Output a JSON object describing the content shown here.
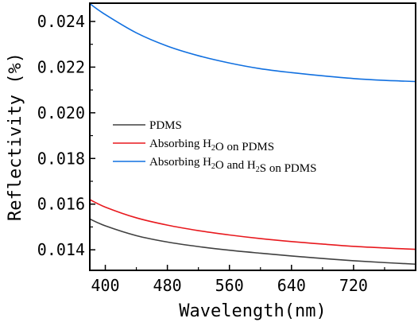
{
  "chart_data": {
    "type": "line",
    "xlabel": "Wavelength(nm)",
    "ylabel": "Reflectivity (%)",
    "xlim": [
      380,
      800
    ],
    "ylim": [
      0.0131,
      0.0248
    ],
    "xticks": [
      400,
      480,
      560,
      640,
      720
    ],
    "xtick_labels": [
      "400",
      "480",
      "560",
      "640",
      "720"
    ],
    "yticks": [
      0.014,
      0.016,
      0.018,
      0.02,
      0.022,
      0.024
    ],
    "ytick_labels": [
      "0.014",
      "0.016",
      "0.018",
      "0.020",
      "0.022",
      "0.024"
    ],
    "grid": false,
    "legend_position": "middle-left",
    "series": [
      {
        "name": "PDMS",
        "legend_parts": [
          {
            "t": "PDMS"
          }
        ],
        "color": "#404040",
        "x": [
          380,
          400,
          440,
          480,
          520,
          560,
          600,
          640,
          680,
          720,
          760,
          800
        ],
        "y": [
          0.01535,
          0.01505,
          0.01462,
          0.01434,
          0.01414,
          0.01398,
          0.01385,
          0.01373,
          0.01362,
          0.01352,
          0.01344,
          0.01337
        ]
      },
      {
        "name": "Absorbing H2O on PDMS",
        "legend_parts": [
          {
            "t": "Absorbing H"
          },
          {
            "t": "2",
            "sub": true
          },
          {
            "t": "O on PDMS"
          }
        ],
        "color": "#e8191e",
        "x": [
          380,
          400,
          440,
          480,
          520,
          560,
          600,
          640,
          680,
          720,
          760,
          800
        ],
        "y": [
          0.0162,
          0.01587,
          0.0154,
          0.01508,
          0.01484,
          0.01465,
          0.01449,
          0.01436,
          0.01425,
          0.01415,
          0.01408,
          0.01402
        ]
      },
      {
        "name": "Absorbing H2O and H2S on PDMS",
        "legend_parts": [
          {
            "t": "Absorbing H"
          },
          {
            "t": "2",
            "sub": true
          },
          {
            "t": "O and H"
          },
          {
            "t": "2",
            "sub": true
          },
          {
            "t": "S on PDMS"
          }
        ],
        "color": "#1170e0",
        "x": [
          380,
          400,
          440,
          480,
          520,
          560,
          600,
          640,
          680,
          720,
          760,
          800
        ],
        "y": [
          0.02478,
          0.0243,
          0.0235,
          0.02292,
          0.0225,
          0.02218,
          0.02193,
          0.02176,
          0.02162,
          0.0215,
          0.02142,
          0.02137
        ]
      }
    ]
  }
}
